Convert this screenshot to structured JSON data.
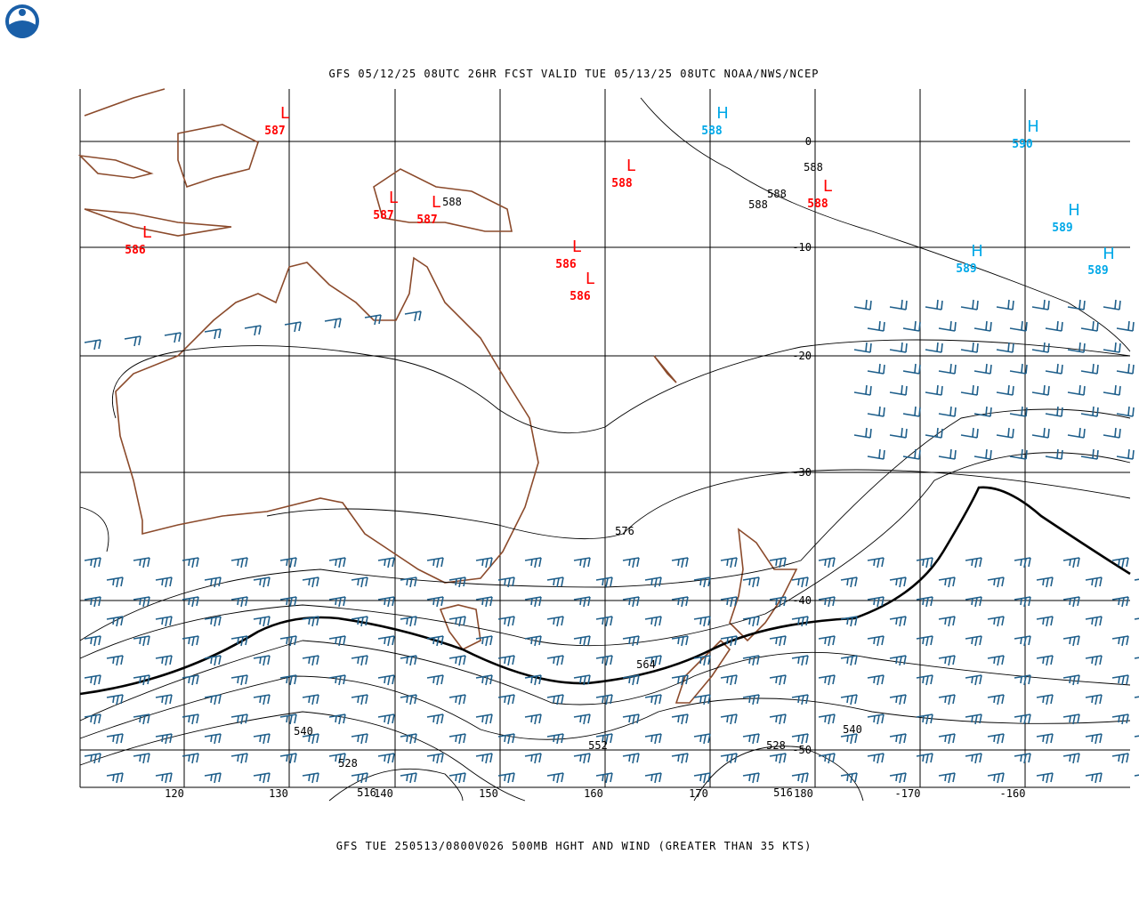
{
  "header": {
    "title": "GFS 05/12/25 08UTC 26HR FCST VALID TUE 05/13/25 08UTC NOAA/NWS/NCEP"
  },
  "footer": {
    "caption": "GFS TUE 250513/0800V026 500MB HGHT AND WIND (GREATER THAN 35 KTS)"
  },
  "map": {
    "lon_labels": [
      120,
      130,
      140,
      150,
      160,
      170,
      180,
      -170,
      -160
    ],
    "lat_labels": [
      0,
      -10,
      -20,
      -30,
      -40,
      -50
    ],
    "pressure_centers": [
      {
        "symbol": "L",
        "value": 587
      },
      {
        "symbol": "L",
        "value": 588
      },
      {
        "symbol": "L",
        "value": 587
      },
      {
        "symbol": "L",
        "value": 587
      },
      {
        "symbol": "L",
        "value": 586
      },
      {
        "symbol": "L",
        "value": 586
      },
      {
        "symbol": "L",
        "value": 586
      },
      {
        "symbol": "L",
        "value": 588
      },
      {
        "symbol": "H",
        "value": 588
      },
      {
        "symbol": "H",
        "value": 590
      },
      {
        "symbol": "H",
        "value": 589
      },
      {
        "symbol": "H",
        "value": 589
      },
      {
        "symbol": "H",
        "value": 589
      }
    ],
    "contour_labels": [
      588,
      588,
      588,
      588,
      576,
      564,
      552,
      540,
      540,
      528,
      528,
      516,
      516
    ]
  }
}
